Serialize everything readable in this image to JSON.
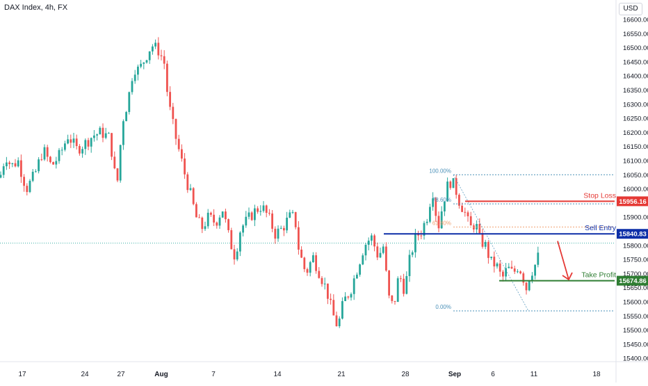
{
  "header": {
    "title": "DAX Index, 4h, FX",
    "currency": "USD"
  },
  "colors": {
    "up": "#26a69a",
    "down": "#ef5350",
    "stop_loss": "#e53935",
    "sell_entry": "#0d2fa8",
    "take_profit": "#2e7d32",
    "fib": "#4a90b8",
    "fib_mid": "#f0a070",
    "arrow": "#e53935",
    "axis_text": "#131722",
    "last_price_line": "#26a69a"
  },
  "chart_data": {
    "type": "candlestick",
    "title": "DAX Index, 4h, FX",
    "ylabel": "USD",
    "ylim": [
      15375,
      16640
    ],
    "y_ticks": [
      16600,
      16550,
      16500,
      16450,
      16400,
      16350,
      16300,
      16250,
      16200,
      16150,
      16100,
      16050,
      16000,
      15950,
      15900,
      15850,
      15800,
      15750,
      15700,
      15650,
      15600,
      15550,
      15500,
      15450,
      15400
    ],
    "y_tick_labels": [
      "16600.00",
      "16550.00",
      "16500.00",
      "16450.00",
      "16400.00",
      "16350.00",
      "16300.00",
      "16250.00",
      "16200.00",
      "16150.00",
      "16100.00",
      "16050.00",
      "16000.00",
      "15950.00",
      "15900.00",
      "15850.00",
      "15800.00",
      "15750.00",
      "15700.00",
      "15650.00",
      "15600.00",
      "15550.00",
      "15500.00",
      "15450.00",
      "15400.00"
    ],
    "x_ticks": [
      "17",
      "24",
      "27",
      "Aug",
      "7",
      "14",
      "21",
      "28",
      "Sep",
      "6",
      "11",
      "18"
    ],
    "x_tick_bold": [
      false,
      false,
      false,
      true,
      false,
      false,
      false,
      false,
      true,
      false,
      false,
      false
    ],
    "path_points": [
      [
        0,
        16040
      ],
      [
        8,
        16120
      ],
      [
        16,
        16080
      ],
      [
        26,
        16100
      ],
      [
        38,
        16000
      ],
      [
        50,
        16050
      ],
      [
        62,
        16140
      ],
      [
        74,
        16080
      ],
      [
        86,
        16120
      ],
      [
        98,
        16190
      ],
      [
        110,
        16140
      ],
      [
        122,
        16160
      ],
      [
        134,
        16190
      ],
      [
        146,
        16200
      ],
      [
        158,
        16180
      ],
      [
        168,
        16000
      ],
      [
        176,
        16240
      ],
      [
        184,
        16310
      ],
      [
        192,
        16430
      ],
      [
        200,
        16420
      ],
      [
        208,
        16460
      ],
      [
        218,
        16510
      ],
      [
        228,
        16490
      ],
      [
        236,
        16450
      ],
      [
        242,
        16310
      ],
      [
        250,
        16210
      ],
      [
        258,
        16130
      ],
      [
        266,
        16050
      ],
      [
        274,
        15980
      ],
      [
        282,
        15900
      ],
      [
        290,
        15860
      ],
      [
        300,
        15900
      ],
      [
        310,
        15880
      ],
      [
        320,
        15930
      ],
      [
        330,
        15820
      ],
      [
        338,
        15760
      ],
      [
        346,
        15860
      ],
      [
        356,
        15890
      ],
      [
        366,
        15920
      ],
      [
        376,
        15940
      ],
      [
        386,
        15900
      ],
      [
        396,
        15840
      ],
      [
        406,
        15860
      ],
      [
        416,
        15900
      ],
      [
        424,
        15900
      ],
      [
        430,
        15780
      ],
      [
        440,
        15700
      ],
      [
        450,
        15760
      ],
      [
        460,
        15700
      ],
      [
        470,
        15640
      ],
      [
        478,
        15560
      ],
      [
        486,
        15510
      ],
      [
        494,
        15600
      ],
      [
        504,
        15640
      ],
      [
        514,
        15720
      ],
      [
        524,
        15800
      ],
      [
        534,
        15830
      ],
      [
        544,
        15760
      ],
      [
        552,
        15800
      ],
      [
        558,
        15620
      ],
      [
        566,
        15580
      ],
      [
        574,
        15700
      ],
      [
        582,
        15640
      ],
      [
        590,
        15760
      ],
      [
        598,
        15830
      ],
      [
        606,
        15850
      ],
      [
        614,
        15900
      ],
      [
        622,
        16000
      ],
      [
        630,
        15860
      ],
      [
        638,
        15960
      ],
      [
        646,
        16030
      ],
      [
        654,
        16010
      ],
      [
        660,
        15960
      ],
      [
        668,
        15920
      ],
      [
        676,
        15860
      ],
      [
        684,
        15880
      ],
      [
        690,
        15820
      ],
      [
        698,
        15800
      ],
      [
        706,
        15740
      ],
      [
        714,
        15730
      ],
      [
        722,
        15680
      ],
      [
        730,
        15720
      ],
      [
        738,
        15700
      ],
      [
        746,
        15730
      ],
      [
        752,
        15690
      ],
      [
        758,
        15640
      ],
      [
        762,
        15700
      ],
      [
        768,
        15720
      ],
      [
        774,
        15760
      ],
      [
        778,
        15820
      ]
    ],
    "levels": [
      {
        "name": "Stop Loss",
        "value": 15956.16,
        "label": "15956.16"
      },
      {
        "name": "Sell Entry",
        "value": 15840.83,
        "label": "15840.83"
      },
      {
        "name": "Take Profit",
        "value": 15674.86,
        "label": "15674.86"
      }
    ],
    "fibonacci": [
      {
        "label": "100.00%",
        "value": 16050
      },
      {
        "label": "78.60%",
        "value": 15947
      },
      {
        "label": "61.80%",
        "value": 15865
      },
      {
        "label": "0.00%",
        "value": 15568
      }
    ],
    "last_price": 15808
  }
}
